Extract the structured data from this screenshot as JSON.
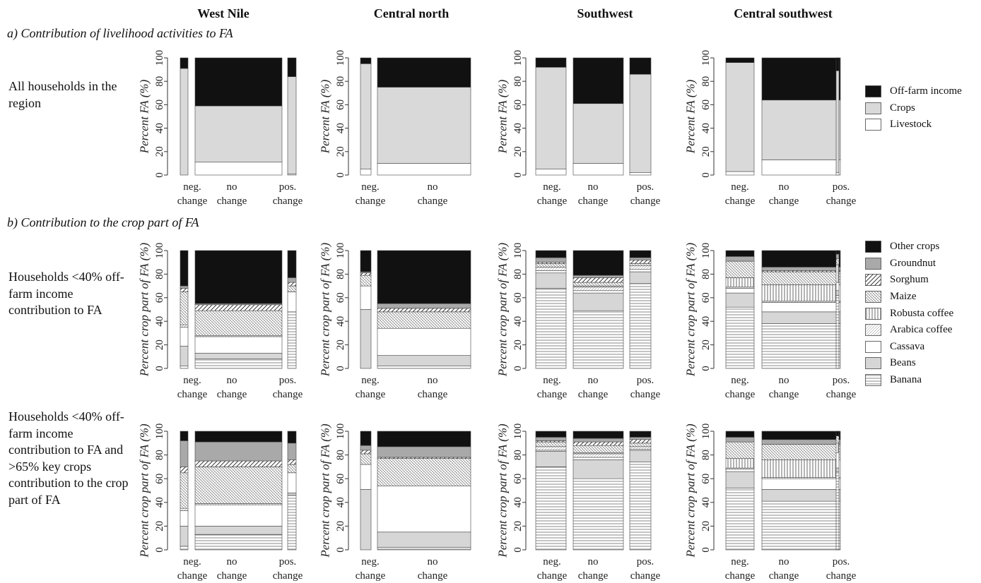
{
  "regions": [
    "West Nile",
    "Central north",
    "Southwest",
    "Central southwest"
  ],
  "section_a_title": "a) Contribution of livelihood activities to FA",
  "section_b_title": "b) Contribution to the crop part of FA",
  "row_labels": {
    "row1": "All households in the region",
    "row2": "Households <40% off-farm income contribution to FA",
    "row3": "Households <40% off-farm income contribution to FA and >65% key crops contribution to the crop part of FA"
  },
  "ylabels": {
    "row1": "Percent FA (%)",
    "crop": "Percent crop part of FA (%)"
  },
  "yticks": [
    "0",
    "20",
    "40",
    "60",
    "80",
    "100"
  ],
  "xcat_labels": {
    "neg": [
      "neg.",
      "change"
    ],
    "no": [
      "no",
      "change"
    ],
    "pos": [
      "pos.",
      "change"
    ]
  },
  "legend_livelihood": [
    {
      "key": "offfarm",
      "label": "Off-farm income"
    },
    {
      "key": "crops",
      "label": "Crops"
    },
    {
      "key": "livestock",
      "label": "Livestock"
    }
  ],
  "legend_crops": [
    {
      "key": "other",
      "label": "Other crops"
    },
    {
      "key": "groundnut",
      "label": "Groundnut"
    },
    {
      "key": "sorghum",
      "label": "Sorghum"
    },
    {
      "key": "maize",
      "label": "Maize"
    },
    {
      "key": "robusta",
      "label": "Robusta coffee"
    },
    {
      "key": "arabica",
      "label": "Arabica coffee"
    },
    {
      "key": "cassava",
      "label": "Cassava"
    },
    {
      "key": "beans",
      "label": "Beans"
    },
    {
      "key": "banana",
      "label": "Banana"
    }
  ],
  "chart_data": [
    {
      "type": "bar",
      "stacked": true,
      "region": "West Nile",
      "row": "a",
      "ylim": [
        0,
        100
      ],
      "categories": [
        "neg. change",
        "no change",
        "pos. change"
      ],
      "series": [
        {
          "name": "Livestock",
          "values": [
            0,
            11,
            1
          ]
        },
        {
          "name": "Crops",
          "values": [
            91,
            48,
            83
          ]
        },
        {
          "name": "Off-farm income",
          "values": [
            9,
            41,
            16
          ]
        }
      ]
    },
    {
      "type": "bar",
      "stacked": true,
      "region": "Central north",
      "row": "a",
      "ylim": [
        0,
        100
      ],
      "categories": [
        "neg. change",
        "no change"
      ],
      "series": [
        {
          "name": "Livestock",
          "values": [
            5,
            10
          ]
        },
        {
          "name": "Crops",
          "values": [
            90,
            65
          ]
        },
        {
          "name": "Off-farm income",
          "values": [
            5,
            25
          ]
        }
      ]
    },
    {
      "type": "bar",
      "stacked": true,
      "region": "Southwest",
      "row": "a",
      "ylim": [
        0,
        100
      ],
      "categories": [
        "neg. change",
        "no change",
        "pos. change"
      ],
      "series": [
        {
          "name": "Livestock",
          "values": [
            5,
            10,
            2
          ]
        },
        {
          "name": "Crops",
          "values": [
            87,
            51,
            84
          ]
        },
        {
          "name": "Off-farm income",
          "values": [
            8,
            39,
            14
          ]
        }
      ]
    },
    {
      "type": "bar",
      "stacked": true,
      "region": "Central southwest",
      "row": "a",
      "ylim": [
        0,
        100
      ],
      "categories": [
        "neg. change",
        "no change",
        "pos. change"
      ],
      "series": [
        {
          "name": "Livestock",
          "values": [
            3,
            13,
            2
          ]
        },
        {
          "name": "Crops",
          "values": [
            93,
            51,
            87
          ]
        },
        {
          "name": "Off-farm income",
          "values": [
            4,
            36,
            11
          ]
        }
      ]
    },
    {
      "type": "bar",
      "stacked": true,
      "region": "West Nile",
      "row": "b1",
      "ylim": [
        0,
        100
      ],
      "categories": [
        "neg. change",
        "no change",
        "pos. change"
      ],
      "series": [
        {
          "name": "Banana",
          "values": [
            2,
            8,
            48
          ]
        },
        {
          "name": "Beans",
          "values": [
            17,
            5,
            0
          ]
        },
        {
          "name": "Cassava",
          "values": [
            16,
            14,
            17
          ]
        },
        {
          "name": "Arabica coffee",
          "values": [
            2,
            1,
            0
          ]
        },
        {
          "name": "Robusta coffee",
          "values": [
            0,
            0,
            0
          ]
        },
        {
          "name": "Maize",
          "values": [
            28,
            21,
            5
          ]
        },
        {
          "name": "Sorghum",
          "values": [
            3,
            5,
            3
          ]
        },
        {
          "name": "Groundnut",
          "values": [
            2,
            1,
            4
          ]
        },
        {
          "name": "Other crops",
          "values": [
            30,
            45,
            23
          ]
        }
      ]
    },
    {
      "type": "bar",
      "stacked": true,
      "region": "Central north",
      "row": "b1",
      "ylim": [
        0,
        100
      ],
      "categories": [
        "neg. change",
        "no change"
      ],
      "series": [
        {
          "name": "Banana",
          "values": [
            0,
            2
          ]
        },
        {
          "name": "Beans",
          "values": [
            50,
            9
          ]
        },
        {
          "name": "Cassava",
          "values": [
            20,
            23
          ]
        },
        {
          "name": "Arabica coffee",
          "values": [
            0,
            0
          ]
        },
        {
          "name": "Robusta coffee",
          "values": [
            0,
            0
          ]
        },
        {
          "name": "Maize",
          "values": [
            9,
            14
          ]
        },
        {
          "name": "Sorghum",
          "values": [
            2,
            3
          ]
        },
        {
          "name": "Groundnut",
          "values": [
            1,
            4
          ]
        },
        {
          "name": "Other crops",
          "values": [
            18,
            45
          ]
        }
      ]
    },
    {
      "type": "bar",
      "stacked": true,
      "region": "Southwest",
      "row": "b1",
      "ylim": [
        0,
        100
      ],
      "categories": [
        "neg. change",
        "no change",
        "pos. change"
      ],
      "series": [
        {
          "name": "Banana",
          "values": [
            68,
            49,
            72
          ]
        },
        {
          "name": "Beans",
          "values": [
            13,
            15,
            10
          ]
        },
        {
          "name": "Cassava",
          "values": [
            2,
            2,
            2
          ]
        },
        {
          "name": "Arabica coffee",
          "values": [
            3,
            3,
            3
          ]
        },
        {
          "name": "Robusta coffee",
          "values": [
            0,
            1,
            0
          ]
        },
        {
          "name": "Maize",
          "values": [
            3,
            3,
            2
          ]
        },
        {
          "name": "Sorghum",
          "values": [
            1,
            4,
            3
          ]
        },
        {
          "name": "Groundnut",
          "values": [
            4,
            2,
            2
          ]
        },
        {
          "name": "Other crops",
          "values": [
            6,
            21,
            6
          ]
        }
      ]
    },
    {
      "type": "bar",
      "stacked": true,
      "region": "Central southwest",
      "row": "b1",
      "ylim": [
        0,
        100
      ],
      "categories": [
        "neg. change",
        "no change",
        "pos. change"
      ],
      "series": [
        {
          "name": "Banana",
          "values": [
            52,
            38,
            62
          ]
        },
        {
          "name": "Beans",
          "values": [
            12,
            10,
            4
          ]
        },
        {
          "name": "Cassava",
          "values": [
            4,
            8,
            7
          ]
        },
        {
          "name": "Arabica coffee",
          "values": [
            1,
            1,
            0
          ]
        },
        {
          "name": "Robusta coffee",
          "values": [
            8,
            14,
            15
          ]
        },
        {
          "name": "Maize",
          "values": [
            14,
            11,
            5
          ]
        },
        {
          "name": "Sorghum",
          "values": [
            0,
            1,
            0
          ]
        },
        {
          "name": "Groundnut",
          "values": [
            4,
            3,
            4
          ]
        },
        {
          "name": "Other crops",
          "values": [
            5,
            14,
            3
          ]
        }
      ]
    },
    {
      "type": "bar",
      "stacked": true,
      "region": "West Nile",
      "row": "b2",
      "ylim": [
        0,
        100
      ],
      "categories": [
        "neg. change",
        "no change",
        "pos. change"
      ],
      "series": [
        {
          "name": "Banana",
          "values": [
            3,
            13,
            46
          ]
        },
        {
          "name": "Beans",
          "values": [
            17,
            7,
            2
          ]
        },
        {
          "name": "Cassava",
          "values": [
            13,
            18,
            17
          ]
        },
        {
          "name": "Arabica coffee",
          "values": [
            2,
            1,
            0
          ]
        },
        {
          "name": "Robusta coffee",
          "values": [
            0,
            0,
            0
          ]
        },
        {
          "name": "Maize",
          "values": [
            30,
            31,
            7
          ]
        },
        {
          "name": "Sorghum",
          "values": [
            5,
            5,
            4
          ]
        },
        {
          "name": "Groundnut",
          "values": [
            22,
            16,
            14
          ]
        },
        {
          "name": "Other crops",
          "values": [
            8,
            9,
            10
          ]
        }
      ]
    },
    {
      "type": "bar",
      "stacked": true,
      "region": "Central north",
      "row": "b2",
      "ylim": [
        0,
        100
      ],
      "categories": [
        "neg. change",
        "no change"
      ],
      "series": [
        {
          "name": "Banana",
          "values": [
            0,
            2
          ]
        },
        {
          "name": "Beans",
          "values": [
            51,
            13
          ]
        },
        {
          "name": "Cassava",
          "values": [
            21,
            39
          ]
        },
        {
          "name": "Arabica coffee",
          "values": [
            0,
            0
          ]
        },
        {
          "name": "Robusta coffee",
          "values": [
            0,
            0
          ]
        },
        {
          "name": "Maize",
          "values": [
            9,
            23
          ]
        },
        {
          "name": "Sorghum",
          "values": [
            3,
            1
          ]
        },
        {
          "name": "Groundnut",
          "values": [
            4,
            9
          ]
        },
        {
          "name": "Other crops",
          "values": [
            12,
            13
          ]
        }
      ]
    },
    {
      "type": "bar",
      "stacked": true,
      "region": "Southwest",
      "row": "b2",
      "ylim": [
        0,
        100
      ],
      "categories": [
        "neg. change",
        "no change",
        "pos. change"
      ],
      "series": [
        {
          "name": "Banana",
          "values": [
            70,
            60,
            74
          ]
        },
        {
          "name": "Beans",
          "values": [
            13,
            16,
            10
          ]
        },
        {
          "name": "Cassava",
          "values": [
            1,
            2,
            1
          ]
        },
        {
          "name": "Arabica coffee",
          "values": [
            3,
            3,
            2
          ]
        },
        {
          "name": "Robusta coffee",
          "values": [
            0,
            1,
            0
          ]
        },
        {
          "name": "Maize",
          "values": [
            4,
            6,
            3
          ]
        },
        {
          "name": "Sorghum",
          "values": [
            1,
            3,
            3
          ]
        },
        {
          "name": "Groundnut",
          "values": [
            3,
            3,
            2
          ]
        },
        {
          "name": "Other crops",
          "values": [
            5,
            6,
            5
          ]
        }
      ]
    },
    {
      "type": "bar",
      "stacked": true,
      "region": "Central southwest",
      "row": "b2",
      "ylim": [
        0,
        100
      ],
      "categories": [
        "neg. change",
        "no change",
        "pos. change"
      ],
      "series": [
        {
          "name": "Banana",
          "values": [
            52,
            41,
            66
          ]
        },
        {
          "name": "Beans",
          "values": [
            14,
            10,
            3
          ]
        },
        {
          "name": "Cassava",
          "values": [
            2,
            9,
            13
          ]
        },
        {
          "name": "Arabica coffee",
          "values": [
            1,
            1,
            0
          ]
        },
        {
          "name": "Robusta coffee",
          "values": [
            8,
            15,
            8
          ]
        },
        {
          "name": "Maize",
          "values": [
            14,
            13,
            6
          ]
        },
        {
          "name": "Sorghum",
          "values": [
            0,
            0,
            0
          ]
        },
        {
          "name": "Groundnut",
          "values": [
            4,
            4,
            0
          ]
        },
        {
          "name": "Other crops",
          "values": [
            5,
            7,
            4
          ]
        }
      ]
    }
  ]
}
